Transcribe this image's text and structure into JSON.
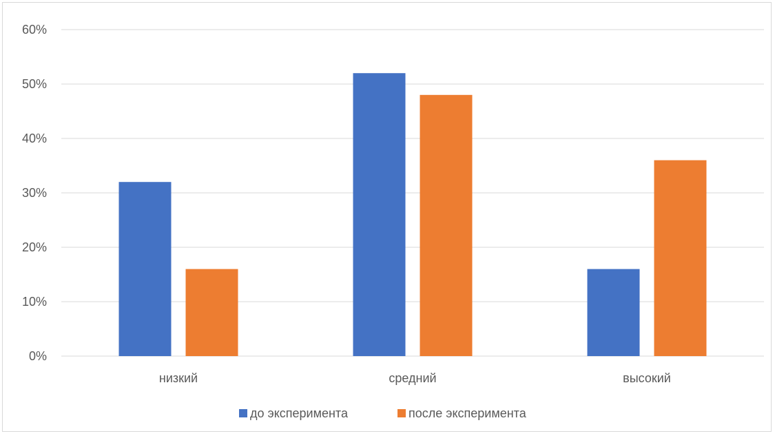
{
  "chart_data": {
    "type": "bar",
    "title": "",
    "xlabel": "",
    "ylabel": "",
    "categories": [
      "низкий",
      "средний",
      "высокий"
    ],
    "series": [
      {
        "name": "до эксперимента",
        "color": "#4472C4",
        "values": [
          0.32,
          0.52,
          0.16
        ]
      },
      {
        "name": "после эксперимента",
        "color": "#ED7D31",
        "values": [
          0.16,
          0.48,
          0.36
        ]
      }
    ],
    "ylim": [
      0,
      0.6
    ],
    "yticks": [
      0,
      0.1,
      0.2,
      0.3,
      0.4,
      0.5,
      0.6
    ],
    "ytick_labels": [
      "0%",
      "10%",
      "20%",
      "30%",
      "40%",
      "50%",
      "60%"
    ],
    "grid": true,
    "legend_position": "bottom"
  }
}
